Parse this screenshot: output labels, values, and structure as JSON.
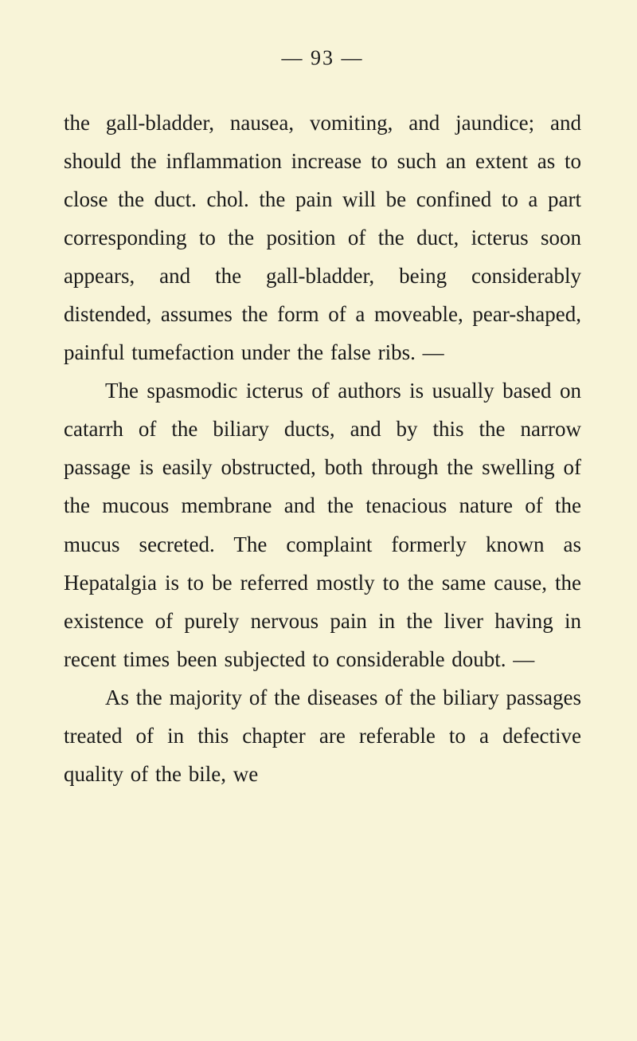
{
  "page": {
    "number": "— 93 —",
    "background_color": "#f8f4d8",
    "text_color": "#1a1a1a",
    "font_family": "Georgia, Times New Roman, serif",
    "font_size": 27,
    "line_height": 1.78
  },
  "paragraphs": [
    "the gall-bladder, nausea, vomiting, and jaundice; and should the inflammation increase to such an extent as to close the duct. chol. the pain will be confined to a part corresponding to the position of the duct, icterus soon appears, and the gall-bladder, being considerably distended, assumes the form of a moveable, pear-shaped, painful tumefaction under the false ribs. —",
    "The spasmodic icterus of authors is usually based on catarrh of the biliary ducts, and by this the narrow passage is easily obstructed, both through the swelling of the mucous mem­brane and the tenacious nature of the mucus secreted. The complaint formerly known as Hepatalgia is to be referred mostly to the same cause, the existence of purely nervous pain in the liver having in recent times been subjected to considerable doubt. —",
    "As the majority of the diseases of the bi­liary passages treated of in this chapter are referable to a defective quality of the bile, we"
  ]
}
